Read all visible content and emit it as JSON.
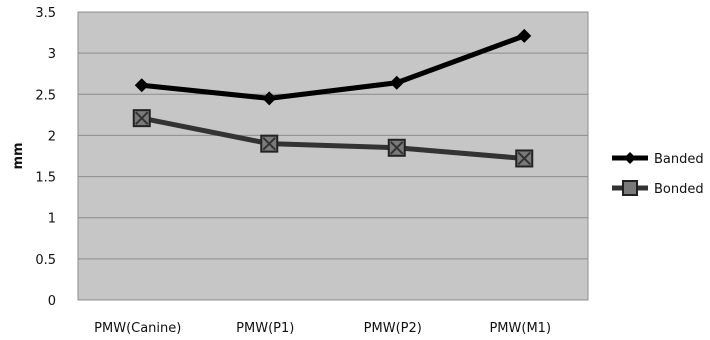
{
  "chart_data": {
    "type": "line",
    "title": "",
    "xlabel": "",
    "ylabel": "mm",
    "ylim": [
      0,
      3.5
    ],
    "yticks": [
      "0",
      "0.5",
      "1",
      "1.5",
      "2",
      "2.5",
      "3",
      "3.5"
    ],
    "categories": [
      "PMW(Canine)",
      "PMW(P1)",
      "PMW(P2)",
      "PMW(M1)"
    ],
    "series": [
      {
        "name": "Banded",
        "values": [
          2.61,
          2.45,
          2.64,
          3.21
        ],
        "color": "#000000",
        "marker": "diamond"
      },
      {
        "name": "Bonded",
        "values": [
          2.21,
          1.9,
          1.85,
          1.72
        ],
        "color": "#333333",
        "marker": "square"
      }
    ],
    "grid": true,
    "legend": "right",
    "plot_background": "#c6c6c6"
  }
}
